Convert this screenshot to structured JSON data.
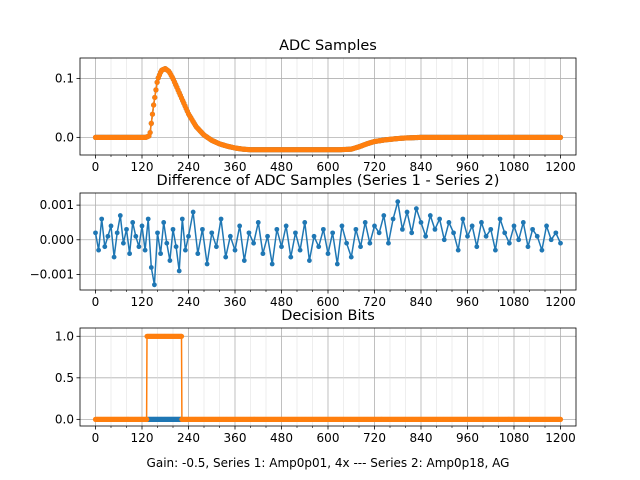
{
  "figure": {
    "footer": "Gain: -0.5, Series 1: Amp0p01, 4x --- Series 2: Amp0p18, AG"
  },
  "colors": {
    "series1": "#1f77b4",
    "series2": "#ff7f0e",
    "grid": "#b0b0b0"
  },
  "chart_data": [
    {
      "id": "adc",
      "type": "line",
      "title": "ADC Samples",
      "xlabel": "",
      "ylabel": "",
      "xlim": [
        -40,
        1240
      ],
      "ylim": [
        -0.03,
        0.135
      ],
      "xticks": [
        0,
        120,
        240,
        360,
        480,
        600,
        720,
        840,
        960,
        1080,
        1200
      ],
      "xtick_labels": [
        "0",
        "120",
        "240",
        "360",
        "480",
        "600",
        "720",
        "840",
        "960",
        "1080",
        "1200"
      ],
      "yticks": [
        0.0,
        0.1
      ],
      "ytick_labels": [
        "0.0",
        "0.1"
      ],
      "grid": true,
      "markers": true,
      "series": [
        {
          "name": "Series 1",
          "color": "#1f77b4",
          "x": [
            0,
            100,
            120,
            130,
            140,
            150,
            160,
            170,
            180,
            190,
            200,
            220,
            240,
            260,
            280,
            300,
            320,
            340,
            360,
            380,
            400,
            450,
            500,
            550,
            600,
            630,
            660,
            680,
            700,
            720,
            750,
            780,
            800,
            840,
            900,
            960,
            1000,
            1050,
            1100,
            1150,
            1200
          ],
          "y": [
            0.0,
            0.0,
            0.0,
            0.0,
            0.003,
            0.055,
            0.098,
            0.114,
            0.117,
            0.112,
            0.1,
            0.07,
            0.04,
            0.018,
            0.004,
            -0.005,
            -0.011,
            -0.015,
            -0.018,
            -0.02,
            -0.021,
            -0.021,
            -0.021,
            -0.021,
            -0.021,
            -0.021,
            -0.02,
            -0.016,
            -0.011,
            -0.007,
            -0.004,
            -0.002,
            -0.001,
            0.0,
            0.0,
            0.0,
            0.0,
            0.0,
            0.0,
            0.0,
            0.0
          ]
        },
        {
          "name": "Series 2",
          "color": "#ff7f0e",
          "x": [
            0,
            100,
            120,
            130,
            140,
            150,
            160,
            170,
            180,
            190,
            200,
            220,
            240,
            260,
            280,
            300,
            320,
            340,
            360,
            380,
            400,
            450,
            500,
            550,
            600,
            630,
            660,
            680,
            700,
            720,
            750,
            780,
            800,
            840,
            900,
            960,
            1000,
            1050,
            1100,
            1150,
            1200
          ],
          "y": [
            0.0,
            0.0,
            0.0,
            0.0,
            0.003,
            0.055,
            0.098,
            0.114,
            0.117,
            0.112,
            0.1,
            0.07,
            0.04,
            0.018,
            0.004,
            -0.005,
            -0.011,
            -0.015,
            -0.018,
            -0.02,
            -0.021,
            -0.021,
            -0.021,
            -0.021,
            -0.021,
            -0.021,
            -0.02,
            -0.016,
            -0.011,
            -0.007,
            -0.004,
            -0.002,
            -0.001,
            0.0,
            0.0,
            0.0,
            0.0,
            0.0,
            0.0,
            0.0,
            0.0
          ]
        }
      ]
    },
    {
      "id": "diff",
      "type": "line",
      "title": "Difference of ADC Samples (Series 1 - Series 2)",
      "xlabel": "",
      "ylabel": "",
      "xlim": [
        -40,
        1240
      ],
      "ylim": [
        -0.00145,
        0.00135
      ],
      "xticks": [
        0,
        120,
        240,
        360,
        480,
        600,
        720,
        840,
        960,
        1080,
        1200
      ],
      "xtick_labels": [
        "0",
        "120",
        "240",
        "360",
        "480",
        "600",
        "720",
        "840",
        "960",
        "1080",
        "1200"
      ],
      "yticks": [
        -0.001,
        0.0,
        0.001
      ],
      "ytick_labels": [
        "−0.001",
        "0.000",
        "0.001"
      ],
      "grid": true,
      "markers": true,
      "series": [
        {
          "name": "Difference",
          "color": "#1f77b4",
          "x": [
            0,
            8,
            16,
            24,
            32,
            40,
            48,
            56,
            64,
            72,
            80,
            88,
            96,
            104,
            112,
            120,
            128,
            136,
            144,
            152,
            160,
            168,
            176,
            184,
            192,
            200,
            208,
            216,
            224,
            232,
            240,
            252,
            264,
            276,
            288,
            300,
            312,
            324,
            336,
            348,
            360,
            372,
            384,
            396,
            408,
            420,
            432,
            444,
            456,
            468,
            480,
            492,
            504,
            516,
            528,
            540,
            552,
            564,
            576,
            588,
            600,
            612,
            624,
            636,
            648,
            660,
            672,
            684,
            696,
            708,
            720,
            732,
            744,
            756,
            768,
            780,
            792,
            804,
            816,
            828,
            840,
            852,
            864,
            876,
            888,
            900,
            912,
            924,
            936,
            948,
            960,
            972,
            984,
            996,
            1008,
            1020,
            1032,
            1044,
            1056,
            1068,
            1080,
            1092,
            1104,
            1116,
            1128,
            1140,
            1152,
            1164,
            1176,
            1188,
            1200
          ],
          "y": [
            0.0002,
            -0.0003,
            0.0006,
            -0.0002,
            0.0001,
            0.0004,
            -0.0005,
            0.0002,
            0.0007,
            -0.0001,
            0.0003,
            -0.0004,
            0.0005,
            0.0001,
            -0.0002,
            0.0004,
            -0.0003,
            0.0006,
            -0.0008,
            -0.0013,
            0.0002,
            -0.0004,
            0.0005,
            -0.0001,
            -0.0006,
            0.0003,
            -0.0002,
            -0.0009,
            0.0006,
            -0.0003,
            0.0001,
            0.0008,
            -0.0004,
            0.0003,
            -0.0007,
            0.0002,
            -0.0002,
            0.0006,
            -0.0005,
            0.0001,
            -0.0003,
            0.0004,
            -0.0006,
            0.0002,
            -0.0001,
            0.0005,
            -0.0004,
            0.0001,
            -0.0007,
            0.0003,
            -0.0002,
            0.0004,
            -0.0005,
            0.0002,
            -0.0003,
            0.0005,
            -0.0006,
            0.0001,
            -0.0002,
            0.0003,
            -0.0004,
            0.0002,
            -0.0007,
            0.0004,
            -0.0001,
            -0.0005,
            0.0003,
            -0.0002,
            0.0005,
            -0.0001,
            0.0004,
            0.0002,
            0.0007,
            -0.0001,
            0.0006,
            0.0011,
            0.0003,
            0.0008,
            0.0002,
            0.0009,
            0.0005,
            0.0001,
            0.0007,
            0.0003,
            0.0006,
            0.0,
            0.0005,
            0.0002,
            -0.0003,
            0.0006,
            0.0001,
            0.0004,
            -0.0002,
            0.0005,
            0.0001,
            0.0003,
            -0.0003,
            0.0006,
            0.0002,
            -0.0001,
            0.0004,
            0.0,
            0.0005,
            -0.0002,
            0.0003,
            0.0001,
            -0.0003,
            0.0004,
            0.0,
            0.0002,
            -0.0001
          ]
        }
      ]
    },
    {
      "id": "bits",
      "type": "line",
      "title": "Decision Bits",
      "xlabel": "Gain: -0.5, Series 1: Amp0p01, 4x --- Series 2: Amp0p18, AG",
      "ylabel": "",
      "xlim": [
        -40,
        1240
      ],
      "ylim": [
        -0.08,
        1.1
      ],
      "xticks": [
        0,
        120,
        240,
        360,
        480,
        600,
        720,
        840,
        960,
        1080,
        1200
      ],
      "xtick_labels": [
        "0",
        "120",
        "240",
        "360",
        "480",
        "600",
        "720",
        "840",
        "960",
        "1080",
        "1200"
      ],
      "yticks": [
        0.0,
        0.5,
        1.0
      ],
      "ytick_labels": [
        "0.0",
        "0.5",
        "1.0"
      ],
      "grid": true,
      "markers": true,
      "series": [
        {
          "name": "Series 1",
          "color": "#1f77b4",
          "segments": [
            {
              "from": 135,
              "to": 220,
              "value": 0
            }
          ]
        },
        {
          "name": "Series 2",
          "color": "#ff7f0e",
          "segments": [
            {
              "from": 0,
              "to": 132,
              "value": 0
            },
            {
              "from": 133,
              "to": 222,
              "value": 1
            },
            {
              "from": 223,
              "to": 1200,
              "value": 0
            }
          ]
        }
      ]
    }
  ]
}
